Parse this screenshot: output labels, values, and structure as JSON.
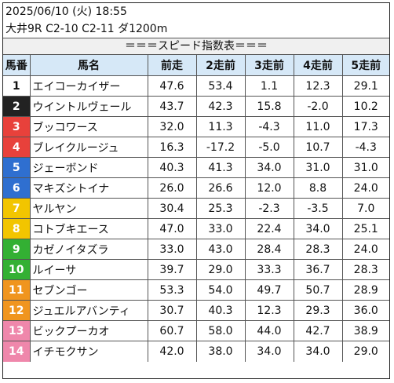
{
  "header": {
    "datetime": "2025/06/10 (火) 18:55",
    "race": "大井9R C2-10 C2-11 ダ1200m"
  },
  "banner": "＝＝＝スピード指数表＝＝＝",
  "columns": [
    "馬番",
    "馬名",
    "前走",
    "2走前",
    "3走前",
    "4走前",
    "5走前"
  ],
  "rows": [
    {
      "no": "1",
      "name": "エイコーカイザー",
      "v": [
        "47.6",
        "53.4",
        "1.1",
        "12.3",
        "29.1"
      ],
      "bg": "#ffffff",
      "fg": "#111111"
    },
    {
      "no": "2",
      "name": "ウイントルヴェール",
      "v": [
        "43.7",
        "42.3",
        "15.8",
        "-2.0",
        "10.2"
      ],
      "bg": "#222222",
      "fg": "#ffffff"
    },
    {
      "no": "3",
      "name": "ブッコワース",
      "v": [
        "32.0",
        "11.3",
        "-4.3",
        "11.0",
        "17.3"
      ],
      "bg": "#e8413b",
      "fg": "#ffffff"
    },
    {
      "no": "4",
      "name": "ブレイクルージュ",
      "v": [
        "16.3",
        "-17.2",
        "-5.0",
        "10.7",
        "-4.3"
      ],
      "bg": "#e8413b",
      "fg": "#ffffff"
    },
    {
      "no": "5",
      "name": "ジェーボンド",
      "v": [
        "40.3",
        "41.3",
        "34.0",
        "31.0",
        "31.0"
      ],
      "bg": "#2f6fd0",
      "fg": "#ffffff"
    },
    {
      "no": "6",
      "name": "マキズシトイナ",
      "v": [
        "26.0",
        "26.6",
        "12.0",
        "8.8",
        "24.0"
      ],
      "bg": "#2f6fd0",
      "fg": "#ffffff"
    },
    {
      "no": "7",
      "name": "ヤルヤン",
      "v": [
        "30.4",
        "25.3",
        "-2.3",
        "-3.5",
        "7.0"
      ],
      "bg": "#f2c500",
      "fg": "#ffffff"
    },
    {
      "no": "8",
      "name": "コトブキエース",
      "v": [
        "47.0",
        "33.0",
        "22.4",
        "34.0",
        "25.1"
      ],
      "bg": "#f2c500",
      "fg": "#ffffff"
    },
    {
      "no": "9",
      "name": "カゼノイタズラ",
      "v": [
        "33.0",
        "43.0",
        "28.4",
        "28.3",
        "24.0"
      ],
      "bg": "#33b033",
      "fg": "#ffffff"
    },
    {
      "no": "10",
      "name": "ルイーサ",
      "v": [
        "39.7",
        "29.0",
        "33.3",
        "36.7",
        "28.3"
      ],
      "bg": "#33b033",
      "fg": "#ffffff"
    },
    {
      "no": "11",
      "name": "セブンゴー",
      "v": [
        "53.3",
        "54.0",
        "49.7",
        "50.7",
        "28.9"
      ],
      "bg": "#f0951f",
      "fg": "#ffffff"
    },
    {
      "no": "12",
      "name": "ジュエルアバンティ",
      "v": [
        "30.7",
        "40.3",
        "12.3",
        "29.3",
        "36.0"
      ],
      "bg": "#f0951f",
      "fg": "#ffffff"
    },
    {
      "no": "13",
      "name": "ビックプーカオ",
      "v": [
        "60.7",
        "58.0",
        "44.0",
        "42.7",
        "38.9"
      ],
      "bg": "#ef87ab",
      "fg": "#ffffff"
    },
    {
      "no": "14",
      "name": "イチモクサン",
      "v": [
        "42.0",
        "38.0",
        "34.0",
        "34.0",
        "29.0"
      ],
      "bg": "#ef87ab",
      "fg": "#ffffff"
    }
  ]
}
